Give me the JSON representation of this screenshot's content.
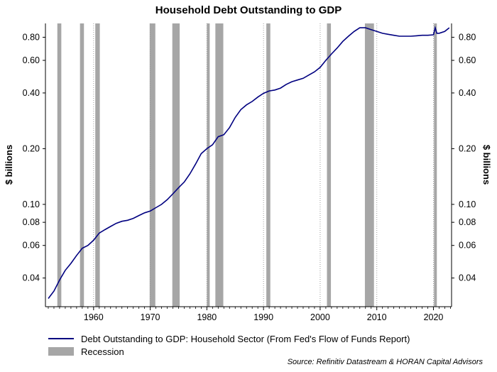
{
  "chart_data": {
    "type": "line",
    "title": "Household Debt Outstanding to GDP",
    "ylabel_left": "$ billions",
    "ylabel_right": "$ billions",
    "yscale": "log",
    "ylim": [
      0.028,
      0.95
    ],
    "xlim": [
      1951.5,
      2023.2
    ],
    "x_ticks": [
      1960,
      1970,
      1980,
      1990,
      2000,
      2010,
      2020
    ],
    "y_ticks": [
      0.04,
      0.06,
      0.08,
      0.1,
      0.2,
      0.4,
      0.6,
      0.8
    ],
    "y_tick_labels": [
      "0.04",
      "0.06",
      "0.08",
      "0.10",
      "0.20",
      "0.40",
      "0.60",
      "0.80"
    ],
    "recessions": [
      [
        1953.6,
        1954.3
      ],
      [
        1957.6,
        1958.3
      ],
      [
        1960.3,
        1961.1
      ],
      [
        1969.9,
        1970.9
      ],
      [
        1973.9,
        1975.2
      ],
      [
        1980.0,
        1980.5
      ],
      [
        1981.5,
        1982.9
      ],
      [
        1990.5,
        1991.2
      ],
      [
        2001.2,
        2001.9
      ],
      [
        2007.9,
        2009.5
      ],
      [
        2020.1,
        2020.4
      ]
    ],
    "grid": "vertical dotted lines at x ticks",
    "series": [
      {
        "name": "Debt Outstanding to GDP: Household Sector (From Fed's Flow of Funds Report)",
        "color": "#000080",
        "x": [
          1952.0,
          1953.0,
          1954.0,
          1955.0,
          1956.0,
          1957.0,
          1958.0,
          1959.0,
          1960.0,
          1961.0,
          1962.0,
          1963.0,
          1964.0,
          1965.0,
          1966.0,
          1967.0,
          1968.0,
          1969.0,
          1970.0,
          1971.0,
          1972.0,
          1973.0,
          1974.0,
          1975.0,
          1976.0,
          1977.0,
          1978.0,
          1979.0,
          1980.0,
          1981.0,
          1982.0,
          1983.0,
          1984.0,
          1985.0,
          1986.0,
          1987.0,
          1988.0,
          1989.0,
          1990.0,
          1991.0,
          1992.0,
          1993.0,
          1994.0,
          1995.0,
          1996.0,
          1997.0,
          1998.0,
          1999.0,
          2000.0,
          2001.0,
          2002.0,
          2003.0,
          2004.0,
          2005.0,
          2006.0,
          2007.0,
          2008.0,
          2009.0,
          2010.0,
          2011.0,
          2012.0,
          2013.0,
          2014.0,
          2015.0,
          2016.0,
          2017.0,
          2018.0,
          2019.0,
          2020.0,
          2020.3,
          2020.6,
          2021.0,
          2022.0,
          2022.8
        ],
        "y": [
          0.031,
          0.034,
          0.039,
          0.044,
          0.048,
          0.053,
          0.058,
          0.06,
          0.064,
          0.07,
          0.073,
          0.076,
          0.079,
          0.081,
          0.082,
          0.084,
          0.087,
          0.09,
          0.092,
          0.096,
          0.1,
          0.106,
          0.114,
          0.123,
          0.132,
          0.146,
          0.165,
          0.188,
          0.2,
          0.21,
          0.232,
          0.238,
          0.26,
          0.295,
          0.325,
          0.345,
          0.36,
          0.38,
          0.398,
          0.41,
          0.415,
          0.425,
          0.445,
          0.46,
          0.47,
          0.48,
          0.5,
          0.52,
          0.55,
          0.6,
          0.65,
          0.7,
          0.76,
          0.81,
          0.86,
          0.9,
          0.9,
          0.88,
          0.86,
          0.84,
          0.83,
          0.82,
          0.81,
          0.81,
          0.81,
          0.815,
          0.82,
          0.82,
          0.825,
          0.9,
          0.84,
          0.84,
          0.86,
          0.9
        ]
      }
    ],
    "legend": [
      {
        "label": "Debt Outstanding to GDP: Household Sector (From Fed's Flow of Funds Report)",
        "kind": "line",
        "color": "#000080"
      },
      {
        "label": "Recession",
        "kind": "bar",
        "color": "#a6a6a6"
      }
    ],
    "legend_position": "bottom-left",
    "source": "Source: Refinitiv Datastream & HORAN Capital Advisors"
  }
}
